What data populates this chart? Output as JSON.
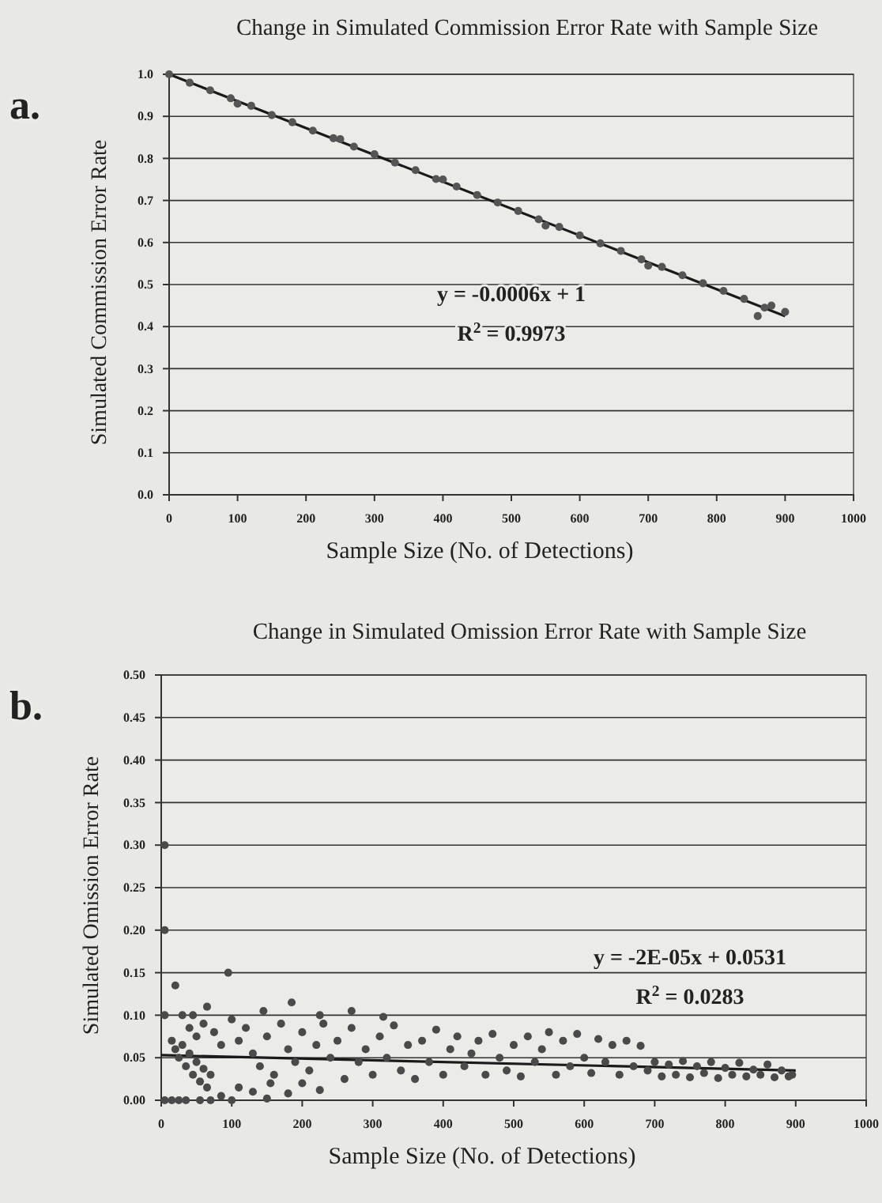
{
  "chart_data": [
    {
      "type": "scatter",
      "title": "Change in Simulated Commission Error Rate with Sample Size",
      "xlabel": "Sample Size (No. of Detections)",
      "ylabel": "Simulated Commission Error Rate",
      "annotations": [
        "a.",
        "y = -0.0006x + 1",
        "R$^{2}$ = 0.9973"
      ],
      "xlim": [
        0,
        1000
      ],
      "xticks": [
        0,
        100,
        200,
        300,
        400,
        500,
        600,
        700,
        800,
        900,
        1000
      ],
      "ylim": [
        0,
        1
      ],
      "yticks": [
        {
          "value": 0,
          "label": "0.0"
        },
        0.1,
        0.2,
        0.3,
        0.4,
        0.5,
        0.6,
        0.7,
        0.8,
        0.9,
        {
          "value": 1,
          "label": "1.0"
        }
      ],
      "grid": "y",
      "series": [
        {
          "marker": "circle",
          "color": "#555555",
          "x": [
            0,
            30,
            60,
            90,
            100,
            120,
            150,
            180,
            210,
            240,
            250,
            270,
            300,
            330,
            360,
            390,
            400,
            420,
            450,
            480,
            510,
            540,
            550,
            570,
            600,
            630,
            660,
            690,
            700,
            720,
            750,
            780,
            810,
            840,
            860,
            870,
            880,
            900
          ],
          "values": [
            1.0,
            0.98,
            0.962,
            0.943,
            0.93,
            0.925,
            0.903,
            0.886,
            0.866,
            0.848,
            0.846,
            0.828,
            0.81,
            0.79,
            0.772,
            0.751,
            0.75,
            0.733,
            0.713,
            0.695,
            0.675,
            0.655,
            0.64,
            0.637,
            0.617,
            0.598,
            0.58,
            0.56,
            0.545,
            0.542,
            0.522,
            0.503,
            0.485,
            0.466,
            0.425,
            0.445,
            0.45,
            0.435
          ]
        },
        {
          "type": "line",
          "color": "#1a1a1a",
          "x": [
            0,
            900
          ],
          "values": [
            1.0,
            0.425
          ]
        }
      ]
    },
    {
      "type": "scatter",
      "title": "Change in Simulated Omission Error Rate with Sample Size",
      "xlabel": "Sample Size (No. of Detections)",
      "ylabel": "Simulated Omission Error Rate",
      "annotations": [
        "b.",
        "y = -2E-05x + 0.0531",
        "R$^{2}$ = 0.0283"
      ],
      "xlim": [
        0,
        1000
      ],
      "xticks": [
        0,
        100,
        200,
        300,
        400,
        500,
        600,
        700,
        800,
        900,
        1000
      ],
      "ylim": [
        0,
        0.5
      ],
      "yticks": [
        {
          "value": 0,
          "label": "0.00"
        },
        0.05,
        {
          "value": 0.1,
          "label": "0.10"
        },
        0.15,
        {
          "value": 0.2,
          "label": "0.20"
        },
        0.25,
        {
          "value": 0.3,
          "label": "0.30"
        },
        0.35,
        {
          "value": 0.4,
          "label": "0.40"
        },
        0.45,
        {
          "value": 0.5,
          "label": "0.50"
        }
      ],
      "grid": "y",
      "series": [
        {
          "marker": "circle",
          "color": "#4a4a4a",
          "x": [
            5,
            5,
            20,
            95,
            185,
            65,
            270,
            145,
            225,
            315,
            5,
            30,
            45,
            5,
            15,
            25,
            35,
            55,
            70,
            100,
            150,
            15,
            20,
            25,
            35,
            45,
            55,
            65,
            30,
            40,
            50,
            60,
            70,
            85,
            110,
            130,
            180,
            155,
            200,
            40,
            50,
            60,
            75,
            85,
            100,
            110,
            120,
            130,
            140,
            150,
            160,
            170,
            180,
            190,
            200,
            210,
            220,
            225,
            230,
            240,
            250,
            260,
            270,
            280,
            290,
            300,
            310,
            320,
            330,
            340,
            350,
            360,
            370,
            380,
            390,
            400,
            410,
            420,
            430,
            440,
            450,
            460,
            470,
            480,
            490,
            500,
            510,
            520,
            530,
            540,
            550,
            560,
            570,
            580,
            590,
            600,
            610,
            620,
            630,
            640,
            650,
            660,
            670,
            680,
            690,
            700,
            710,
            720,
            730,
            740,
            750,
            760,
            770,
            780,
            790,
            800,
            810,
            820,
            830,
            840,
            850,
            860,
            870,
            880,
            890,
            895
          ],
          "values": [
            0.3,
            0.2,
            0.135,
            0.15,
            0.115,
            0.11,
            0.105,
            0.105,
            0.1,
            0.098,
            0.1,
            0.1,
            0.1,
            0,
            0,
            0,
            0,
            0,
            0,
            0,
            0.002,
            0.07,
            0.06,
            0.05,
            0.04,
            0.03,
            0.022,
            0.015,
            0.065,
            0.055,
            0.045,
            0.037,
            0.03,
            0.005,
            0.015,
            0.01,
            0.008,
            0.02,
            0.02,
            0.085,
            0.075,
            0.09,
            0.08,
            0.065,
            0.095,
            0.07,
            0.085,
            0.055,
            0.04,
            0.075,
            0.03,
            0.09,
            0.06,
            0.045,
            0.08,
            0.035,
            0.065,
            0.012,
            0.09,
            0.05,
            0.07,
            0.025,
            0.085,
            0.045,
            0.06,
            0.03,
            0.075,
            0.05,
            0.088,
            0.035,
            0.065,
            0.025,
            0.07,
            0.045,
            0.083,
            0.03,
            0.06,
            0.075,
            0.04,
            0.055,
            0.07,
            0.03,
            0.078,
            0.05,
            0.035,
            0.065,
            0.028,
            0.075,
            0.045,
            0.06,
            0.08,
            0.03,
            0.07,
            0.04,
            0.078,
            0.05,
            0.032,
            0.072,
            0.045,
            0.065,
            0.03,
            0.07,
            0.04,
            0.064,
            0.035,
            0.045,
            0.028,
            0.042,
            0.03,
            0.046,
            0.027,
            0.04,
            0.032,
            0.045,
            0.026,
            0.038,
            0.03,
            0.044,
            0.028,
            0.036,
            0.03,
            0.042,
            0.027,
            0.035,
            0.028,
            0.03
          ]
        },
        {
          "type": "line",
          "color": "#1a1a1a",
          "x": [
            0,
            900
          ],
          "values": [
            0.053,
            0.035
          ]
        }
      ]
    }
  ]
}
